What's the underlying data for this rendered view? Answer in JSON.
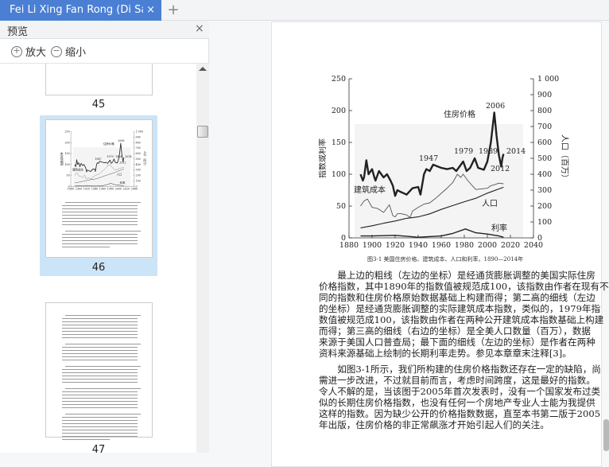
{
  "tab": {
    "title": "Fei Li Xing Fan Rong (Di San Ban)",
    "close": "×",
    "new_tab": "+"
  },
  "sidebar": {
    "title": "预览",
    "close": "×",
    "zoom_in": "放大",
    "zoom_out": "缩小",
    "pages": [
      "45",
      "46",
      "47"
    ],
    "selected_page": "46"
  },
  "document": {
    "chart": {
      "left_axis_label": "指数或利率",
      "right_axis_label": "人口（百万）",
      "left_ticks": [
        "0",
        "50",
        "100",
        "150",
        "200",
        "250"
      ],
      "right_ticks": [
        "0",
        "100",
        "200",
        "300",
        "400",
        "500",
        "600",
        "700",
        "800",
        "900",
        "1 000"
      ],
      "x_ticks": [
        "1880",
        "1900",
        "1920",
        "1940",
        "1960",
        "1980",
        "2000",
        "2020",
        "2040"
      ],
      "labels": {
        "price": "住房价格",
        "cost": "建筑成本",
        "population": "人口",
        "rate": "利率"
      },
      "annotations": [
        "1947",
        "1979",
        "1989",
        "2006",
        "2012",
        "2014"
      ],
      "caption": "图3-1 美国住房价格、建筑成本、人口和利率，1890—2014年"
    },
    "paragraphs": [
      [
        "　　最上边的粗线（左边的坐标）是经通货膨胀调整的美国实际住房",
        "价格指数，其中1890年的指数值被规范成100，该指数由作者在现有不",
        "同的指数和住房价格原始数据基础上构建而得；第二高的细线（左边",
        "的坐标）是经通货膨胀调整的实际建筑成本指数，类似的，1979年指",
        "数值被规范成100，该指数由作者在两种公开建筑成本指数基础上构建",
        "而得；第三高的细线（右边的坐标）是全美人口数量（百万），数据",
        "来源于美国人口普查局；最下面的细线（左边的坐标）是作者在两种",
        "资料来源基础上绘制的长期利率走势。参见本章章末注释[3]。"
      ],
      [
        "　　如图3-1所示，我们所构建的住房价格指数还存在一定的缺陷，尚",
        "需进一步改进，不过就目前而言，考虑时间跨度，这是最好的指数。",
        "令人不解的是，当该图于2005年首次发表时，没有一个国家发布过类",
        "似的长期住房价格指数，也没有任何一个房地产专业人士能为我提供",
        "这样的指数。因为缺少公开的价格指数数据，直至本书第二版于2005",
        "年出版，住房价格的非正常飙涨才开始引起人们的关注。"
      ]
    ]
  },
  "chart_data": {
    "type": "line",
    "title": "图3-1 美国住房价格、建筑成本、人口和利率，1890—2014年",
    "xlabel": "",
    "ylabel": "指数或利率",
    "y2label": "人口（百万）",
    "xlim": [
      1880,
      2040
    ],
    "ylim": [
      0,
      250
    ],
    "y2lim": [
      0,
      1000
    ],
    "grid": false,
    "series": [
      {
        "name": "住房价格",
        "axis": "left",
        "x": [
          1890,
          1892,
          1893,
          1895,
          1897,
          1900,
          1902,
          1903,
          1906,
          1910,
          1913,
          1916,
          1918,
          1920,
          1922,
          1925,
          1930,
          1935,
          1940,
          1942,
          1945,
          1947,
          1950,
          1953,
          1960,
          1965,
          1970,
          1973,
          1979,
          1982,
          1985,
          1989,
          1992,
          1997,
          2000,
          2003,
          2006,
          2008,
          2010,
          2012,
          2013,
          2014
        ],
        "y": [
          100,
          90,
          95,
          122,
          100,
          108,
          95,
          90,
          105,
          95,
          100,
          90,
          82,
          66,
          75,
          72,
          68,
          78,
          80,
          68,
          100,
          108,
          105,
          115,
          110,
          108,
          110,
          105,
          120,
          105,
          110,
          125,
          110,
          107,
          120,
          150,
          197,
          160,
          130,
          112,
          125,
          132
        ]
      },
      {
        "name": "建筑成本",
        "axis": "left",
        "x": [
          1890,
          1893,
          1896,
          1900,
          1905,
          1910,
          1915,
          1918,
          1920,
          1922,
          1925,
          1930,
          1933,
          1935,
          1940,
          1945,
          1950,
          1955,
          1960,
          1965,
          1970,
          1974,
          1977,
          1979,
          1983,
          1987,
          1990,
          1995,
          2000,
          2003,
          2007,
          2010,
          2014
        ],
        "y": [
          50,
          58,
          61,
          48,
          46,
          40,
          52,
          35,
          33,
          38,
          38,
          36,
          32,
          42,
          48,
          53,
          55,
          62,
          70,
          78,
          87,
          100,
          95,
          100,
          90,
          82,
          76,
          77,
          78,
          82,
          84,
          86,
          85
        ]
      },
      {
        "name": "人口",
        "axis": "right",
        "x": [
          1890,
          1900,
          1910,
          1920,
          1930,
          1940,
          1950,
          1960,
          1970,
          1980,
          1990,
          2000,
          2014
        ],
        "y": [
          63,
          76,
          92,
          106,
          123,
          132,
          151,
          179,
          203,
          227,
          249,
          281,
          318
        ]
      },
      {
        "name": "利率",
        "axis": "left",
        "x": [
          1890,
          1900,
          1920,
          1940,
          1960,
          1970,
          1981,
          1990,
          2000,
          2010,
          2014
        ],
        "y": [
          3,
          3,
          4,
          1,
          3,
          7,
          14,
          8,
          6,
          3,
          1
        ]
      }
    ]
  },
  "colors": {
    "tab_active": "#4a7fd4",
    "thumb_selected": "#cce4f7"
  }
}
